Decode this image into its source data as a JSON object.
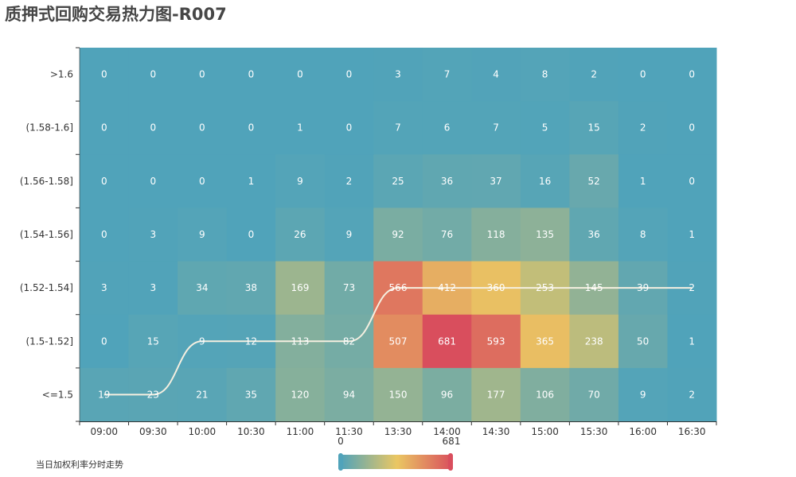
{
  "title": "质押式回购交易热力图-R007",
  "footnote": "当日加权利率分时走势",
  "visual_map": {
    "min": "0",
    "max": "681",
    "colors": [
      "#50a3ba",
      "#eac763",
      "#d94e5d"
    ]
  },
  "chart_data": {
    "type": "heatmap",
    "title": "质押式回购交易热力图-R007",
    "x_categories": [
      "09:00",
      "09:30",
      "10:00",
      "10:30",
      "11:00",
      "11:30",
      "13:30",
      "14:00",
      "14:30",
      "15:00",
      "15:30",
      "16:00",
      "16:30"
    ],
    "y_categories": [
      ">1.6",
      "(1.58-1.6]",
      "(1.56-1.58]",
      "(1.54-1.56]",
      "(1.52-1.54]",
      "(1.5-1.52]",
      "<=1.5"
    ],
    "values": [
      [
        0,
        0,
        0,
        0,
        0,
        0,
        3,
        7,
        4,
        8,
        2,
        0,
        0
      ],
      [
        0,
        0,
        0,
        0,
        1,
        0,
        7,
        6,
        7,
        5,
        15,
        2,
        0
      ],
      [
        0,
        0,
        0,
        1,
        9,
        2,
        25,
        36,
        37,
        16,
        52,
        1,
        0
      ],
      [
        0,
        3,
        9,
        0,
        26,
        9,
        92,
        76,
        118,
        135,
        36,
        8,
        1
      ],
      [
        3,
        3,
        34,
        38,
        169,
        73,
        566,
        412,
        360,
        253,
        145,
        39,
        2
      ],
      [
        0,
        15,
        9,
        12,
        113,
        82,
        507,
        681,
        593,
        365,
        238,
        50,
        1
      ],
      [
        19,
        23,
        21,
        35,
        120,
        94,
        150,
        96,
        177,
        106,
        70,
        9,
        2
      ]
    ],
    "value_range": [
      0,
      681
    ],
    "trend_line": {
      "name": "当日加权利率分时走势",
      "x": [
        "09:00",
        "09:30",
        "10:00",
        "10:30",
        "11:00",
        "11:30",
        "13:30",
        "14:00",
        "14:30",
        "15:00",
        "15:30",
        "16:00",
        "16:30"
      ],
      "y_bucket": [
        "<=1.5",
        "<=1.5",
        "(1.5-1.52]",
        "(1.5-1.52]",
        "(1.5-1.52]",
        "(1.5-1.52]",
        "(1.52-1.54]",
        "(1.52-1.54]",
        "(1.52-1.54]",
        "(1.52-1.54]",
        "(1.52-1.54]",
        "(1.52-1.54]",
        "(1.52-1.54]"
      ],
      "color": "#f5efe0"
    }
  }
}
